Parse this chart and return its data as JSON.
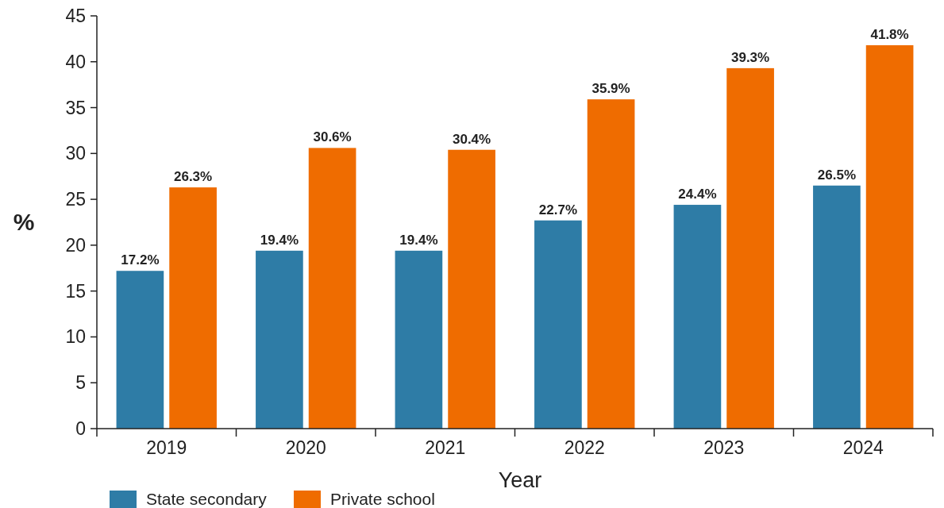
{
  "chart_data": {
    "type": "bar",
    "xlabel": "Year",
    "ylabel": "%",
    "categories": [
      "2019",
      "2020",
      "2021",
      "2022",
      "2023",
      "2024"
    ],
    "series": [
      {
        "name": "State secondary",
        "color": "#2e7ca6",
        "values": [
          17.2,
          19.4,
          19.4,
          22.7,
          24.4,
          26.5
        ],
        "value_labels": [
          "17.2%",
          "19.4%",
          "19.4%",
          "22.7%",
          "24.4%",
          "26.5%"
        ]
      },
      {
        "name": "Private school",
        "color": "#ef6c00",
        "values": [
          26.3,
          30.6,
          30.4,
          35.9,
          39.3,
          41.8
        ],
        "value_labels": [
          "26.3%",
          "30.6%",
          "30.4%",
          "35.9%",
          "39.3%",
          "41.8%"
        ]
      }
    ],
    "ylim": [
      0,
      45
    ],
    "yticks": [
      0,
      5,
      10,
      15,
      20,
      25,
      30,
      35,
      40,
      45
    ],
    "grid": false,
    "legend": "bottom left"
  }
}
